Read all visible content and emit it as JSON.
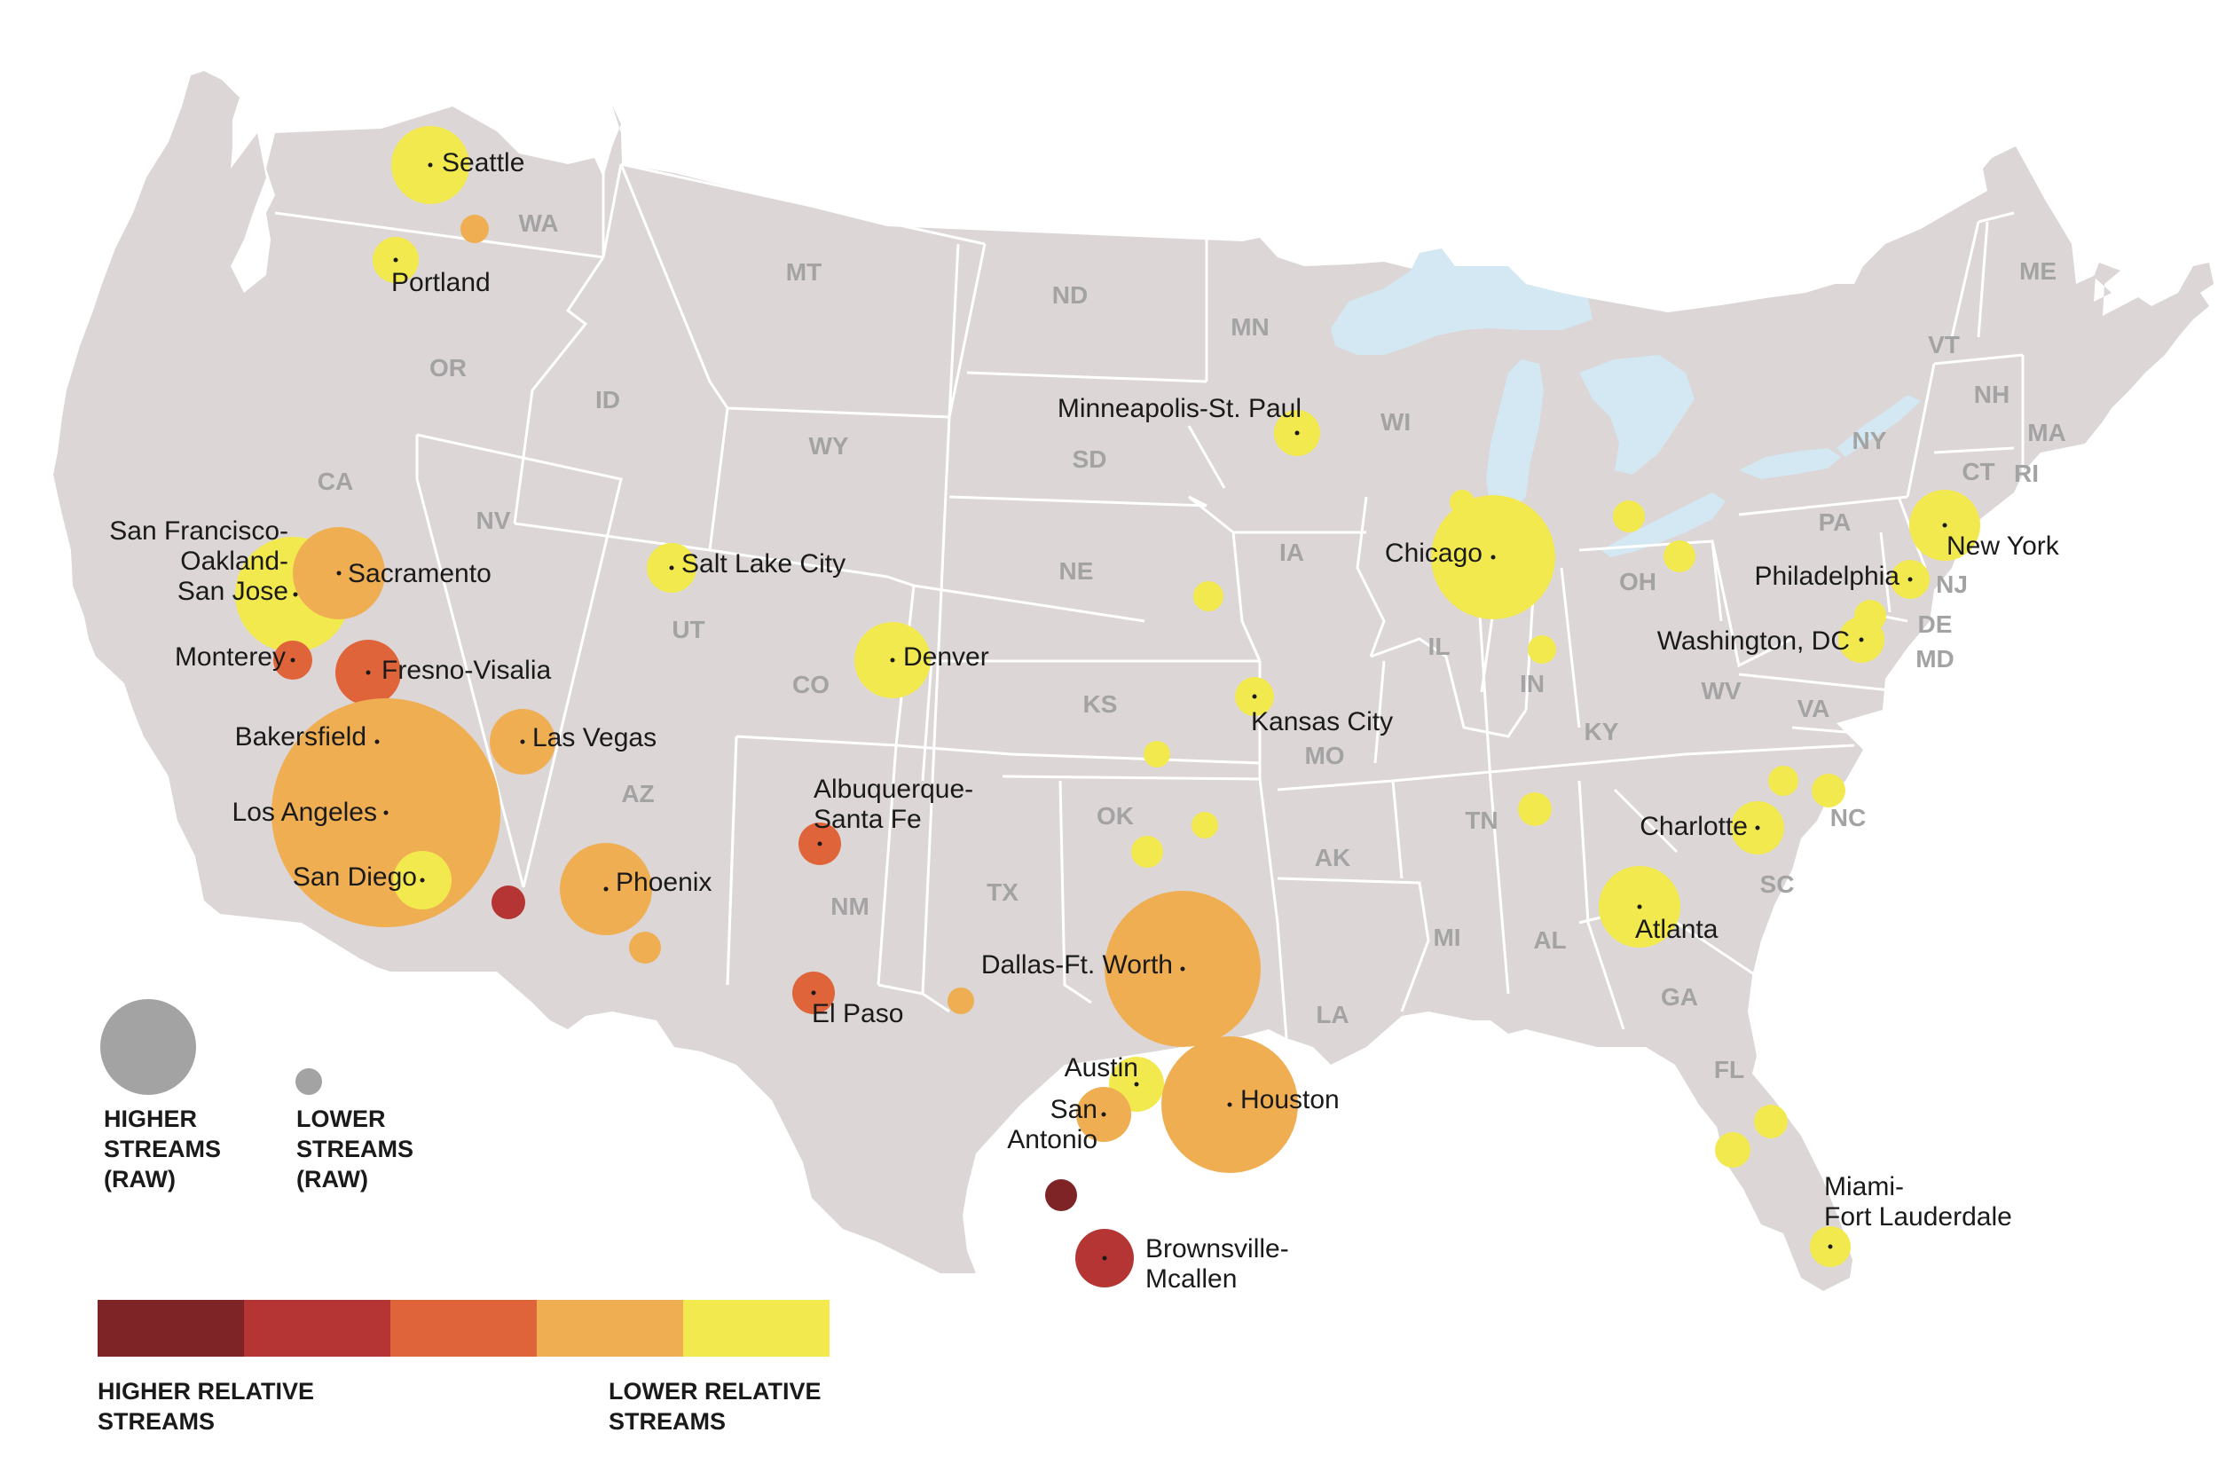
{
  "colors": {
    "land": "#dcd6d6",
    "water": "#d3e8f2",
    "level1": "#7f2426",
    "level2": "#b43534",
    "level3": "#e0643a",
    "level4": "#efae52",
    "level5": "#f2e94e",
    "legend_circle": "#a3a3a3"
  },
  "states": [
    {
      "id": "WA",
      "label": "WA"
    },
    {
      "id": "OR",
      "label": "OR"
    },
    {
      "id": "CA",
      "label": "CA"
    },
    {
      "id": "ID",
      "label": "ID"
    },
    {
      "id": "NV",
      "label": "NV"
    },
    {
      "id": "MT",
      "label": "MT"
    },
    {
      "id": "WY",
      "label": "WY"
    },
    {
      "id": "UT",
      "label": "UT"
    },
    {
      "id": "AZ",
      "label": "AZ"
    },
    {
      "id": "CO",
      "label": "CO"
    },
    {
      "id": "NM",
      "label": "NM"
    },
    {
      "id": "ND",
      "label": "ND"
    },
    {
      "id": "SD",
      "label": "SD"
    },
    {
      "id": "NE",
      "label": "NE"
    },
    {
      "id": "KS",
      "label": "KS"
    },
    {
      "id": "OK",
      "label": "OK"
    },
    {
      "id": "TX",
      "label": "TX"
    },
    {
      "id": "MN",
      "label": "MN"
    },
    {
      "id": "IA",
      "label": "IA"
    },
    {
      "id": "MO",
      "label": "MO"
    },
    {
      "id": "AK",
      "label": "AK"
    },
    {
      "id": "LA",
      "label": "LA"
    },
    {
      "id": "WI",
      "label": "WI"
    },
    {
      "id": "IL",
      "label": "IL"
    },
    {
      "id": "IN",
      "label": "IN"
    },
    {
      "id": "OH",
      "label": "OH"
    },
    {
      "id": "KY",
      "label": "KY"
    },
    {
      "id": "TN",
      "label": "TN"
    },
    {
      "id": "MI",
      "label": "MI"
    },
    {
      "id": "AL",
      "label": "AL"
    },
    {
      "id": "GA",
      "label": "GA"
    },
    {
      "id": "FL",
      "label": "FL"
    },
    {
      "id": "SC",
      "label": "SC"
    },
    {
      "id": "NC",
      "label": "NC"
    },
    {
      "id": "VA",
      "label": "VA"
    },
    {
      "id": "WV",
      "label": "WV"
    },
    {
      "id": "MD",
      "label": "MD"
    },
    {
      "id": "DE",
      "label": "DE"
    },
    {
      "id": "NJ",
      "label": "NJ"
    },
    {
      "id": "PA",
      "label": "PA"
    },
    {
      "id": "NY",
      "label": "NY"
    },
    {
      "id": "CT",
      "label": "CT"
    },
    {
      "id": "RI",
      "label": "RI"
    },
    {
      "id": "MA",
      "label": "MA"
    },
    {
      "id": "VT",
      "label": "VT"
    },
    {
      "id": "NH",
      "label": "NH"
    },
    {
      "id": "ME",
      "label": "ME"
    }
  ],
  "cities": [
    {
      "id": "seattle",
      "lines": [
        "Seattle"
      ],
      "level": 5
    },
    {
      "id": "portland",
      "lines": [
        "Portland"
      ],
      "level": 5
    },
    {
      "id": "sf",
      "lines": [
        "San Francisco-",
        "Oakland-",
        "San Jose"
      ],
      "level": 5
    },
    {
      "id": "sacramento",
      "lines": [
        "Sacramento"
      ],
      "level": 4
    },
    {
      "id": "monterey",
      "lines": [
        "Monterey"
      ],
      "level": 3
    },
    {
      "id": "fresno",
      "lines": [
        "Fresno-Visalia"
      ],
      "level": 3
    },
    {
      "id": "bakersfield",
      "lines": [
        "Bakersfield"
      ],
      "level": 3
    },
    {
      "id": "la",
      "lines": [
        "Los Angeles"
      ],
      "level": 4
    },
    {
      "id": "sandiego",
      "lines": [
        "San Diego"
      ],
      "level": 5
    },
    {
      "id": "lasvegas",
      "lines": [
        "Las Vegas"
      ],
      "level": 4
    },
    {
      "id": "phoenix",
      "lines": [
        "Phoenix"
      ],
      "level": 4
    },
    {
      "id": "slc",
      "lines": [
        "Salt Lake City"
      ],
      "level": 5
    },
    {
      "id": "denver",
      "lines": [
        "Denver"
      ],
      "level": 5
    },
    {
      "id": "abq",
      "lines": [
        "Albuquerque-",
        "Santa Fe"
      ],
      "level": 3
    },
    {
      "id": "elpaso",
      "lines": [
        "El Paso"
      ],
      "level": 3
    },
    {
      "id": "dfw",
      "lines": [
        "Dallas-Ft. Worth"
      ],
      "level": 4
    },
    {
      "id": "austin",
      "lines": [
        "Austin"
      ],
      "level": 5
    },
    {
      "id": "sanantonio",
      "lines": [
        "San",
        "Antonio"
      ],
      "level": 4
    },
    {
      "id": "houston",
      "lines": [
        "Houston"
      ],
      "level": 4
    },
    {
      "id": "brownsville",
      "lines": [
        "Brownsville-",
        "Mcallen"
      ],
      "level": 2
    },
    {
      "id": "msp",
      "lines": [
        "Minneapolis-St. Paul"
      ],
      "level": 5
    },
    {
      "id": "kc",
      "lines": [
        "Kansas City"
      ],
      "level": 5
    },
    {
      "id": "chicago",
      "lines": [
        "Chicago"
      ],
      "level": 5
    },
    {
      "id": "atlanta",
      "lines": [
        "Atlanta"
      ],
      "level": 5
    },
    {
      "id": "charlotte",
      "lines": [
        "Charlotte"
      ],
      "level": 5
    },
    {
      "id": "dc",
      "lines": [
        "Washington, DC"
      ],
      "level": 5
    },
    {
      "id": "philadelphia",
      "lines": [
        "Philadelphia"
      ],
      "level": 5
    },
    {
      "id": "newyork",
      "lines": [
        "New York"
      ],
      "level": 5
    },
    {
      "id": "miami",
      "lines": [
        "Miami-",
        "Fort Lauderdale"
      ],
      "level": 5
    }
  ],
  "unlabeled_markets": [
    {
      "id": "wa-east",
      "level": 4
    },
    {
      "id": "ca-south-east",
      "level": 2
    },
    {
      "id": "az-south",
      "level": 4
    },
    {
      "id": "tx-west",
      "level": 4
    },
    {
      "id": "tx-south",
      "level": 1
    },
    {
      "id": "ks-east",
      "level": 5
    },
    {
      "id": "ok-north",
      "level": 5
    },
    {
      "id": "ok-central",
      "level": 5
    },
    {
      "id": "ia-east",
      "level": 5
    },
    {
      "id": "in-central",
      "level": 5
    },
    {
      "id": "mi-east",
      "level": 5
    },
    {
      "id": "oh-north",
      "level": 5
    },
    {
      "id": "tn-central",
      "level": 5
    },
    {
      "id": "nc-central",
      "level": 5
    },
    {
      "id": "nc-east",
      "level": 5
    },
    {
      "id": "md-baltimore",
      "level": 5
    },
    {
      "id": "fl-west",
      "level": 5
    },
    {
      "id": "fl-central",
      "level": 5
    },
    {
      "id": "wi-east",
      "level": 5
    }
  ],
  "legend": {
    "size_high": [
      "HIGHER",
      "STREAMS",
      "(RAW)"
    ],
    "size_low": [
      "LOWER",
      "STREAMS",
      "(RAW)"
    ],
    "color_high": [
      "HIGHER RELATIVE",
      "STREAMS"
    ],
    "color_low": [
      "LOWER RELATIVE",
      "STREAMS"
    ],
    "scale_levels": [
      1,
      2,
      3,
      4,
      5
    ]
  }
}
